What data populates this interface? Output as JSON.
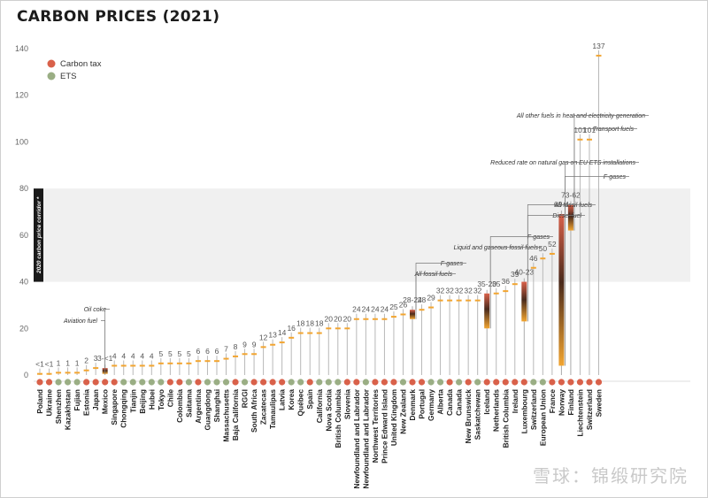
{
  "title": "CARBON PRICES (2021)",
  "watermark": "雪球：锦缎研究院",
  "colors": {
    "carbon_tax": "#d9614a",
    "ets": "#9aae84",
    "axis": "#999999",
    "band": "#f0f0f0"
  },
  "chart_data": {
    "type": "bar",
    "title": "CARBON PRICES (2021)",
    "ylim": [
      0,
      140
    ],
    "yticks": [
      0,
      20,
      40,
      60,
      80,
      100,
      120,
      140
    ],
    "grid": false,
    "legend": {
      "placement": "top-left",
      "entries": [
        {
          "name": "Carbon tax",
          "key": "tax"
        },
        {
          "name": "ETS",
          "key": "ets"
        }
      ]
    },
    "corridor": {
      "label": "2020 carbon price corridor *",
      "range": [
        40,
        80
      ]
    },
    "categories": [
      {
        "name": "Poland",
        "type": "tax",
        "label": "<1",
        "value": 0.5
      },
      {
        "name": "Ukraine",
        "type": "tax",
        "label": "<1",
        "value": 0.5
      },
      {
        "name": "Shenzhen",
        "type": "ets",
        "label": "1",
        "value": 1
      },
      {
        "name": "Kazakhstan",
        "type": "ets",
        "label": "1",
        "value": 1
      },
      {
        "name": "Fujian",
        "type": "ets",
        "label": "1",
        "value": 1
      },
      {
        "name": "Estonia",
        "type": "tax",
        "label": "2",
        "value": 2
      },
      {
        "name": "Japan",
        "type": "tax",
        "label": "3",
        "value": 3
      },
      {
        "name": "Mexico",
        "type": "tax",
        "label": "3-<1",
        "value": 3,
        "low": 0.5
      },
      {
        "name": "Singapore",
        "type": "tax",
        "label": "4",
        "value": 4
      },
      {
        "name": "Chongqing",
        "type": "ets",
        "label": "4",
        "value": 4
      },
      {
        "name": "Tianjin",
        "type": "ets",
        "label": "4",
        "value": 4
      },
      {
        "name": "Beijing",
        "type": "ets",
        "label": "4",
        "value": 4
      },
      {
        "name": "Hubei",
        "type": "ets",
        "label": "4",
        "value": 4
      },
      {
        "name": "Tokyo",
        "type": "ets",
        "label": "5",
        "value": 5
      },
      {
        "name": "Chile",
        "type": "tax",
        "label": "5",
        "value": 5
      },
      {
        "name": "Colombia",
        "type": "tax",
        "label": "5",
        "value": 5
      },
      {
        "name": "Saitama",
        "type": "ets",
        "label": "5",
        "value": 5
      },
      {
        "name": "Argentina",
        "type": "tax",
        "label": "6",
        "value": 6
      },
      {
        "name": "Guangdong",
        "type": "ets",
        "label": "6",
        "value": 6
      },
      {
        "name": "Shanghai",
        "type": "ets",
        "label": "6",
        "value": 6
      },
      {
        "name": "Massachusetts",
        "type": "ets",
        "label": "7",
        "value": 7
      },
      {
        "name": "Baja California",
        "type": "tax",
        "label": "8",
        "value": 8
      },
      {
        "name": "RGGI",
        "type": "ets",
        "label": "9",
        "value": 9
      },
      {
        "name": "South Africa",
        "type": "tax",
        "label": "9",
        "value": 9
      },
      {
        "name": "Zacatecas",
        "type": "tax",
        "label": "12",
        "value": 12
      },
      {
        "name": "Tamaulipas",
        "type": "tax",
        "label": "13",
        "value": 13
      },
      {
        "name": "Latvia",
        "type": "tax",
        "label": "14",
        "value": 14
      },
      {
        "name": "Korea",
        "type": "ets",
        "label": "16",
        "value": 16
      },
      {
        "name": "Québec",
        "type": "ets",
        "label": "18",
        "value": 18
      },
      {
        "name": "Spain",
        "type": "tax",
        "label": "18",
        "value": 18
      },
      {
        "name": "California",
        "type": "ets",
        "label": "18",
        "value": 18
      },
      {
        "name": "Nova Scotia",
        "type": "ets",
        "label": "20",
        "value": 20
      },
      {
        "name": "British Columbia",
        "type": "ets",
        "label": "20",
        "value": 20
      },
      {
        "name": "Slovenia",
        "type": "tax",
        "label": "20",
        "value": 20
      },
      {
        "name": "Newfoundland and Labrador",
        "type": "tax",
        "label": "24",
        "value": 24
      },
      {
        "name": "Newfoundland and Labrador",
        "type": "ets",
        "label": "24",
        "value": 24
      },
      {
        "name": "Northwest Territories",
        "type": "tax",
        "label": "24",
        "value": 24
      },
      {
        "name": "Prince Edward Island",
        "type": "tax",
        "label": "24",
        "value": 24
      },
      {
        "name": "United Kingdom",
        "type": "tax",
        "label": "25",
        "value": 25
      },
      {
        "name": "New Zealand",
        "type": "ets",
        "label": "26",
        "value": 26
      },
      {
        "name": "Denmark",
        "type": "tax",
        "label": "28-24",
        "value": 28,
        "low": 24
      },
      {
        "name": "Portugal",
        "type": "tax",
        "label": "28",
        "value": 28
      },
      {
        "name": "Germany",
        "type": "ets",
        "label": "29",
        "value": 29
      },
      {
        "name": "Alberta",
        "type": "ets",
        "label": "32",
        "value": 32
      },
      {
        "name": "Canada",
        "type": "tax",
        "label": "32",
        "value": 32
      },
      {
        "name": "Canada",
        "type": "ets",
        "label": "32",
        "value": 32
      },
      {
        "name": "New Brunswick",
        "type": "tax",
        "label": "32",
        "value": 32
      },
      {
        "name": "Saskatchewan",
        "type": "ets",
        "label": "32",
        "value": 32
      },
      {
        "name": "Iceland",
        "type": "tax",
        "label": "35-20",
        "value": 35,
        "low": 20
      },
      {
        "name": "Netherlands",
        "type": "tax",
        "label": "35",
        "value": 35
      },
      {
        "name": "British Columbia",
        "type": "tax",
        "label": "36",
        "value": 36
      },
      {
        "name": "Ireland",
        "type": "tax",
        "label": "39",
        "value": 39
      },
      {
        "name": "Luxembourg",
        "type": "tax",
        "label": "40-23",
        "value": 40,
        "low": 23
      },
      {
        "name": "Switzerland",
        "type": "ets",
        "label": "46",
        "value": 46
      },
      {
        "name": "European Union",
        "type": "ets",
        "label": "50",
        "value": 50
      },
      {
        "name": "France",
        "type": "tax",
        "label": "52",
        "value": 52
      },
      {
        "name": "Norway",
        "type": "tax",
        "label": "69-4",
        "value": 69,
        "low": 4
      },
      {
        "name": "Finland",
        "type": "tax",
        "label": "73-62",
        "value": 73,
        "low": 62
      },
      {
        "name": "Liechtenstein",
        "type": "tax",
        "label": "101",
        "value": 101
      },
      {
        "name": "Switzerland",
        "type": "tax",
        "label": "101",
        "value": 101
      },
      {
        "name": "Sweden",
        "type": "tax",
        "label": "137",
        "value": 137
      }
    ],
    "annotations": [
      {
        "text": "Oil coke",
        "category": 7,
        "value": 3,
        "lx": 120,
        "ly": 352
      },
      {
        "text": "Aviation fuel",
        "category": 7,
        "value": 0.5,
        "lx": 110,
        "ly": 365
      },
      {
        "text": "F-gases",
        "category": 40,
        "value": 28,
        "lx": 523,
        "ly": 300
      },
      {
        "text": "All fossil fuels",
        "category": 40,
        "value": 24,
        "lx": 511,
        "ly": 312
      },
      {
        "text": "F-gases",
        "category": 48,
        "value": 35,
        "lx": 621,
        "ly": 270
      },
      {
        "text": "Liquid and gaseous fossil fuels",
        "category": 48,
        "value": 20,
        "lx": 608,
        "ly": 282
      },
      {
        "text": "All fossil fuels",
        "category": 52,
        "value": 40,
        "lx": 669,
        "ly": 234
      },
      {
        "text": "Diesel fuel",
        "category": 52,
        "value": 23,
        "lx": 657,
        "ly": 246
      },
      {
        "text": "F-gases",
        "category": 56,
        "value": 69,
        "lx": 707,
        "ly": 202
      },
      {
        "text": "Reduced rate on natural gas on EU ETS installations",
        "category": 56,
        "value": 4,
        "lx": 718,
        "ly": 186
      },
      {
        "text": "Transport fuels",
        "category": 57,
        "value": 73,
        "lx": 716,
        "ly": 148
      },
      {
        "text": "All other fuels in heat and electricity generation",
        "category": 57,
        "value": 62,
        "lx": 729,
        "ly": 133
      }
    ]
  }
}
